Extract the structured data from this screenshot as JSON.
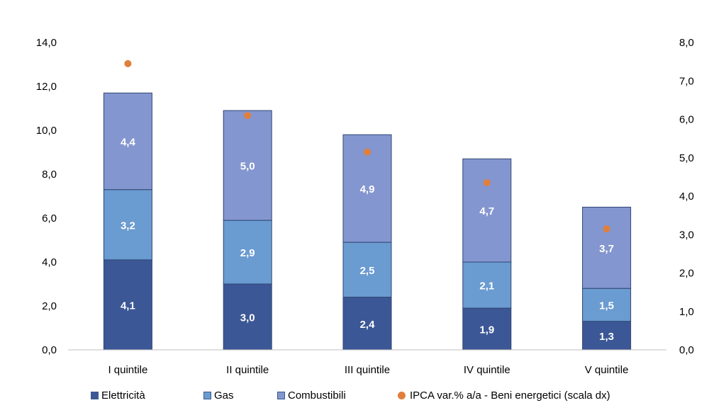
{
  "chart_data": {
    "type": "bar",
    "stacked": true,
    "title": "",
    "categories": [
      "I quintile",
      "II quintile",
      "III quintile",
      "IV quintile",
      "V quintile"
    ],
    "series": [
      {
        "name": "Elettricità",
        "values": [
          4.1,
          3.0,
          2.4,
          1.9,
          1.3
        ],
        "labels": [
          "4,1",
          "3,0",
          "2,4",
          "1,9",
          "1,3"
        ],
        "color": "#3c5796"
      },
      {
        "name": "Gas",
        "values": [
          3.2,
          2.9,
          2.5,
          2.1,
          1.5
        ],
        "labels": [
          "3,2",
          "2,9",
          "2,5",
          "2,1",
          "1,5"
        ],
        "color": "#6a9bd1"
      },
      {
        "name": "Combustibili",
        "values": [
          4.4,
          5.0,
          4.9,
          4.7,
          3.7
        ],
        "labels": [
          "4,4",
          "5,0",
          "4,9",
          "4,7",
          "3,7"
        ],
        "color": "#8496cf"
      }
    ],
    "secondary_series": {
      "name": "IPCA var.% a/a - Beni energetici (scala dx)",
      "type": "scatter",
      "axis": "right",
      "values": [
        7.45,
        6.1,
        5.15,
        4.35,
        3.15
      ],
      "color": "#e07f3c"
    },
    "left_axis": {
      "ylim": [
        0,
        14
      ],
      "ticks": [
        "0,0",
        "2,0",
        "4,0",
        "6,0",
        "8,0",
        "10,0",
        "12,0",
        "14,0"
      ]
    },
    "right_axis": {
      "ylim": [
        0,
        8
      ],
      "ticks": [
        "0,0",
        "1,0",
        "2,0",
        "3,0",
        "4,0",
        "5,0",
        "6,0",
        "7,0",
        "8,0"
      ]
    },
    "grid": false,
    "legend_position": "bottom"
  },
  "legend": {
    "items": [
      "Elettricità",
      "Gas",
      "Combustibili",
      "IPCA var.% a/a - Beni energetici (scala dx)"
    ]
  }
}
